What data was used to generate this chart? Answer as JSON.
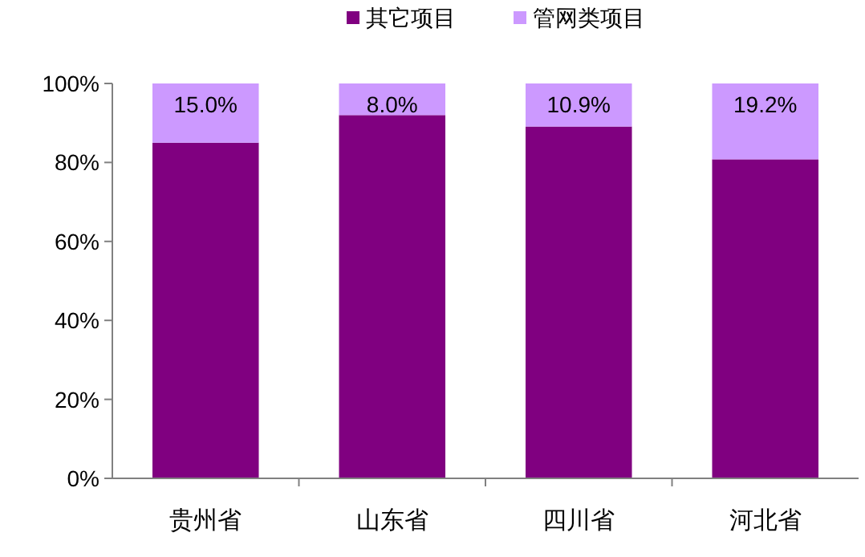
{
  "chart_data": {
    "type": "bar",
    "stacked": true,
    "categories": [
      "贵州省",
      "山东省",
      "四川省",
      "河北省"
    ],
    "series": [
      {
        "name": "其它项目",
        "color": "#800080",
        "values": [
          85.0,
          92.0,
          89.1,
          80.8
        ]
      },
      {
        "name": "管网类项目",
        "color": "#cc99ff",
        "values": [
          15.0,
          8.0,
          10.9,
          19.2
        ],
        "value_labels": [
          "15.0%",
          "8.0%",
          "10.9%",
          "19.2%"
        ]
      }
    ],
    "ylim": [
      0,
      100
    ],
    "yticks": [
      {
        "value": 0,
        "label": "0%"
      },
      {
        "value": 20,
        "label": "20%"
      },
      {
        "value": 40,
        "label": "40%"
      },
      {
        "value": 60,
        "label": "60%"
      },
      {
        "value": 80,
        "label": "80%"
      },
      {
        "value": 100,
        "label": "100%"
      }
    ],
    "legend": "top"
  }
}
